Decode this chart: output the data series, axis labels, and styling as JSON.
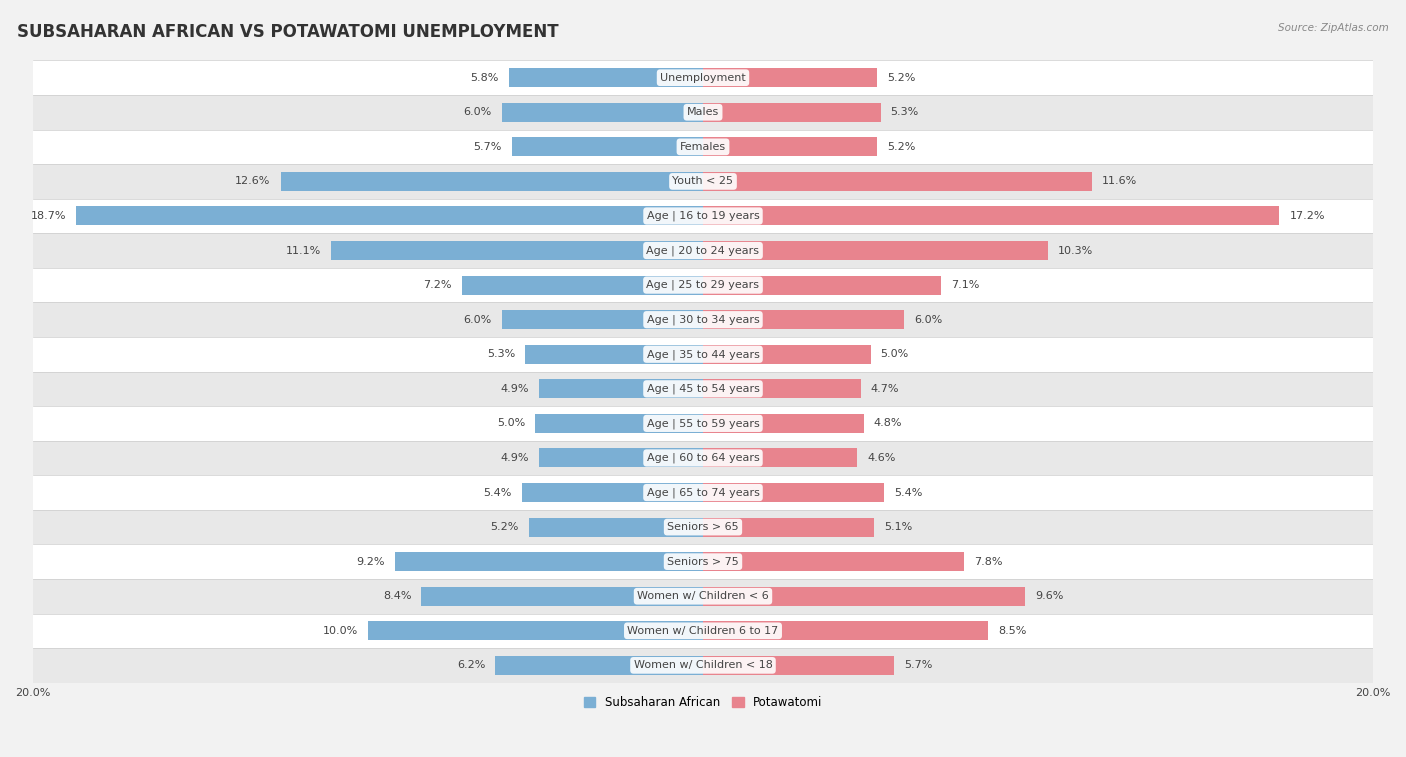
{
  "title": "SUBSAHARAN AFRICAN VS POTAWATOMI UNEMPLOYMENT",
  "source": "Source: ZipAtlas.com",
  "categories": [
    "Unemployment",
    "Males",
    "Females",
    "Youth < 25",
    "Age | 16 to 19 years",
    "Age | 20 to 24 years",
    "Age | 25 to 29 years",
    "Age | 30 to 34 years",
    "Age | 35 to 44 years",
    "Age | 45 to 54 years",
    "Age | 55 to 59 years",
    "Age | 60 to 64 years",
    "Age | 65 to 74 years",
    "Seniors > 65",
    "Seniors > 75",
    "Women w/ Children < 6",
    "Women w/ Children 6 to 17",
    "Women w/ Children < 18"
  ],
  "left_values": [
    5.8,
    6.0,
    5.7,
    12.6,
    18.7,
    11.1,
    7.2,
    6.0,
    5.3,
    4.9,
    5.0,
    4.9,
    5.4,
    5.2,
    9.2,
    8.4,
    10.0,
    6.2
  ],
  "right_values": [
    5.2,
    5.3,
    5.2,
    11.6,
    17.2,
    10.3,
    7.1,
    6.0,
    5.0,
    4.7,
    4.8,
    4.6,
    5.4,
    5.1,
    7.8,
    9.6,
    8.5,
    5.7
  ],
  "left_color": "#7bafd4",
  "right_color": "#e8848e",
  "left_label": "Subsaharan African",
  "right_label": "Potawatomi",
  "xlim": 20.0,
  "bar_height": 0.55,
  "background_color": "#f2f2f2",
  "row_color_odd": "#ffffff",
  "row_color_even": "#e8e8e8",
  "title_fontsize": 12,
  "label_fontsize": 8,
  "tick_fontsize": 8,
  "value_fontsize": 8
}
